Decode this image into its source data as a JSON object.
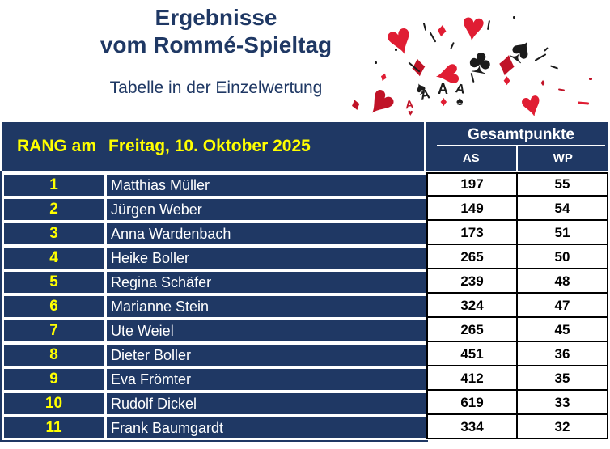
{
  "title": {
    "line1": "Ergebnisse",
    "line2": "vom Rommé-Spieltag",
    "subtitle": "Tabelle in der Einzelwertung"
  },
  "header": {
    "rank_label": "RANG am",
    "date": "Freitag, 10. Oktober 2025",
    "points_group": "Gesamtpunkte",
    "col_as": "AS",
    "col_wp": "WP"
  },
  "rows": [
    {
      "rank": "1",
      "name": "Matthias Müller",
      "as": "197",
      "wp": "55"
    },
    {
      "rank": "2",
      "name": "Jürgen Weber",
      "as": "149",
      "wp": "54"
    },
    {
      "rank": "3",
      "name": "Anna Wardenbach",
      "as": "173",
      "wp": "51"
    },
    {
      "rank": "4",
      "name": "Heike Boller",
      "as": "265",
      "wp": "50"
    },
    {
      "rank": "5",
      "name": "Regina Schäfer",
      "as": "239",
      "wp": "48"
    },
    {
      "rank": "6",
      "name": "Marianne Stein",
      "as": "324",
      "wp": "47"
    },
    {
      "rank": "7",
      "name": "Ute Weiel",
      "as": "265",
      "wp": "45"
    },
    {
      "rank": "8",
      "name": "Dieter Boller",
      "as": "451",
      "wp": "36"
    },
    {
      "rank": "9",
      "name": "Eva Frömter",
      "as": "412",
      "wp": "35"
    },
    {
      "rank": "10",
      "name": "Rudolf Dickel",
      "as": "619",
      "wp": "33"
    },
    {
      "rank": "11",
      "name": "Frank Baumgardt",
      "as": "334",
      "wp": "32"
    }
  ],
  "decor": {
    "suit_icons": {
      "heart": "♥",
      "diamond": "♦",
      "spade": "♠",
      "club": "♣"
    },
    "ace_letter": "A"
  },
  "colors": {
    "navy": "#1f3864",
    "yellow": "#ffff00",
    "card_red": "#e01d33",
    "card_red_dark": "#c01327",
    "card_black": "#1b1b1b"
  }
}
